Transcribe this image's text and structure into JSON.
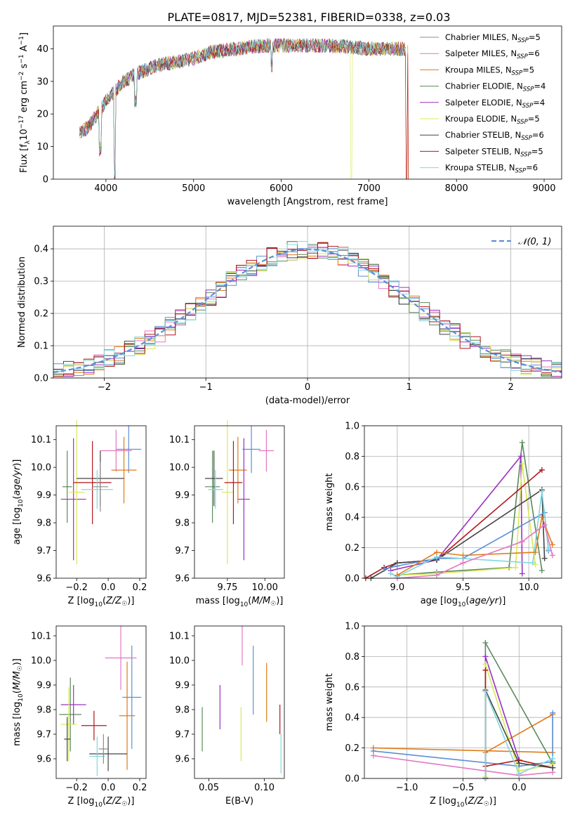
{
  "figure_title": "PLATE=0817, MJD=52381, FIBERID=0338, z=0.03",
  "colors": {
    "chabrier_miles": "#8c8c8c",
    "salpeter_miles": "#e377c2",
    "kroupa_miles": "#e07b1a",
    "chabrier_elodie": "#5a8a5a",
    "salpeter_elodie": "#9b30c0",
    "kroupa_elodie": "#d9e85a",
    "chabrier_stelib": "#444444",
    "salpeter_stelib": "#b0161a",
    "kroupa_stelib": "#7fd8e0",
    "normal_curve": "#5b8fd9",
    "miles_extra": "#5b8fd9"
  },
  "chart_data": [
    {
      "id": "spectrum",
      "type": "line",
      "title": "PLATE=0817, MJD=52381, FIBERID=0338, z=0.03",
      "xlabel": "wavelength [Angstrom, rest frame]",
      "ylabel": "Flux [f_λ10^-17 erg cm^-2 s^-1 A^-1]",
      "xlim": [
        3400,
        9200
      ],
      "ylim": [
        0,
        47
      ],
      "xticks": [
        4000,
        5000,
        6000,
        7000,
        8000,
        9000
      ],
      "yticks": [
        0,
        10,
        20,
        30,
        40
      ],
      "legend_position": "right",
      "series": [
        {
          "name": "Chabrier MILES, N_SSP=5",
          "color_key": "chabrier_miles"
        },
        {
          "name": "Salpeter MILES, N_SSP=6",
          "color_key": "salpeter_miles"
        },
        {
          "name": "Kroupa MILES, N_SSP=5",
          "color_key": "kroupa_miles"
        },
        {
          "name": "Chabrier ELODIE, N_SSP=4",
          "color_key": "chabrier_elodie"
        },
        {
          "name": "Salpeter ELODIE, N_SSP=4",
          "color_key": "salpeter_elodie"
        },
        {
          "name": "Kroupa ELODIE, N_SSP=5",
          "color_key": "kroupa_elodie"
        },
        {
          "name": "Chabrier STELIB, N_SSP=6",
          "color_key": "chabrier_stelib"
        },
        {
          "name": "Salpeter STELIB, N_SSP=5",
          "color_key": "salpeter_stelib"
        },
        {
          "name": "Kroupa STELIB, N_SSP=6",
          "color_key": "kroupa_stelib"
        }
      ],
      "continuum": {
        "x": [
          3700,
          3800,
          3900,
          4000,
          4100,
          4200,
          4400,
          4600,
          4800,
          5000,
          5200,
          5500,
          5800,
          6000,
          6300,
          6600,
          7000,
          7300,
          7600,
          8000,
          8400,
          8800,
          9000
        ],
        "y": [
          14,
          16,
          20,
          24,
          27,
          30,
          33,
          35,
          36,
          37,
          39,
          40,
          41,
          41,
          41,
          41,
          40,
          40,
          40,
          40,
          40,
          40,
          40
        ]
      },
      "absorption_dips": [
        {
          "x": 3933,
          "depth": 12
        },
        {
          "x": 4101,
          "depth": 25
        },
        {
          "x": 4340,
          "depth": 8
        },
        {
          "x": 5890,
          "depth": 6
        },
        {
          "x": 6800,
          "to": 0
        },
        {
          "x": 7430,
          "to": 0
        }
      ]
    },
    {
      "id": "residuals",
      "type": "line",
      "xlabel": "(data-model)/error",
      "ylabel": "Normed distribution",
      "xlim": [
        -2.5,
        2.5
      ],
      "ylim": [
        0,
        0.47
      ],
      "xticks": [
        -2,
        -1,
        0,
        1,
        2
      ],
      "yticks": [
        0.0,
        0.1,
        0.2,
        0.3,
        0.4
      ],
      "grid": true,
      "legend_position": "top-right",
      "normal_label": "𝒩(0, 1)",
      "bin_width": 0.1
    },
    {
      "id": "age_vs_Z",
      "type": "scatter",
      "xlabel": "Z [log10(Z/Z☉)]",
      "ylabel": "age  [log10(age/yr)]",
      "xlim": [
        -0.33,
        0.24
      ],
      "ylim": [
        9.6,
        10.15
      ],
      "xticks": [
        -0.2,
        0.0,
        0.2
      ],
      "yticks": [
        9.6,
        9.7,
        9.8,
        9.9,
        10.0,
        10.1
      ],
      "points": [
        {
          "color_key": "miles_extra",
          "x": 0.13,
          "xerr": 0.08,
          "y": 10.065,
          "yerr": 0.085
        },
        {
          "color_key": "salpeter_miles",
          "x": 0.05,
          "xerr": 0.1,
          "y": 10.06,
          "yerr": 0.075
        },
        {
          "color_key": "kroupa_miles",
          "x": 0.1,
          "xerr": 0.08,
          "y": 9.99,
          "yerr": 0.12
        },
        {
          "color_key": "chabrier_elodie",
          "x": -0.26,
          "xerr": 0.03,
          "y": 9.93,
          "yerr": 0.13
        },
        {
          "color_key": "salpeter_elodie",
          "x": -0.22,
          "xerr": 0.08,
          "y": 9.885,
          "yerr": 0.22
        },
        {
          "color_key": "kroupa_elodie",
          "x": -0.2,
          "xerr": 0.05,
          "y": 9.91,
          "yerr": 0.26
        },
        {
          "color_key": "chabrier_stelib",
          "x": -0.05,
          "xerr": 0.15,
          "y": 9.96,
          "yerr": 0.1
        },
        {
          "color_key": "salpeter_stelib",
          "x": -0.1,
          "xerr": 0.12,
          "y": 9.945,
          "yerr": 0.15
        },
        {
          "color_key": "kroupa_stelib",
          "x": -0.07,
          "xerr": 0.1,
          "y": 9.92,
          "yerr": 0.07
        },
        {
          "color_key": "chabrier_miles",
          "x": -0.05,
          "xerr": 0.05,
          "y": 9.93,
          "yerr": 0.09
        }
      ]
    },
    {
      "id": "age_vs_mass",
      "type": "scatter",
      "xlabel": "mass [log10(M/M☉)]",
      "xlim": [
        9.53,
        10.13
      ],
      "ylim": [
        9.6,
        10.15
      ],
      "xticks": [
        9.75,
        10.0
      ],
      "yticks": [
        9.6,
        9.7,
        9.8,
        9.9,
        10.0,
        10.1
      ],
      "points": [
        {
          "color_key": "miles_extra",
          "x": 9.91,
          "xerr": 0.06,
          "y": 10.065,
          "yerr": 0.085
        },
        {
          "color_key": "salpeter_miles",
          "x": 10.01,
          "xerr": 0.05,
          "y": 10.06,
          "yerr": 0.075
        },
        {
          "color_key": "kroupa_miles",
          "x": 9.82,
          "xerr": 0.06,
          "y": 9.99,
          "yerr": 0.12
        },
        {
          "color_key": "chabrier_elodie",
          "x": 9.65,
          "xerr": 0.05,
          "y": 9.93,
          "yerr": 0.13
        },
        {
          "color_key": "salpeter_elodie",
          "x": 9.86,
          "xerr": 0.04,
          "y": 9.885,
          "yerr": 0.22
        },
        {
          "color_key": "kroupa_elodie",
          "x": 9.75,
          "xerr": 0.04,
          "y": 9.91,
          "yerr": 0.26
        },
        {
          "color_key": "chabrier_stelib",
          "x": 9.66,
          "xerr": 0.06,
          "y": 9.96,
          "yerr": 0.1
        },
        {
          "color_key": "salpeter_stelib",
          "x": 9.79,
          "xerr": 0.06,
          "y": 9.945,
          "yerr": 0.15
        },
        {
          "color_key": "kroupa_stelib",
          "x": 9.67,
          "xerr": 0.05,
          "y": 9.92,
          "yerr": 0.07
        }
      ]
    },
    {
      "id": "weight_vs_age",
      "type": "line",
      "xlabel": "age  [log10(age/yr)]",
      "ylabel": "mass weight",
      "xlim": [
        8.75,
        10.25
      ],
      "ylim": [
        0,
        1
      ],
      "xticks": [
        9.0,
        9.5,
        10.0
      ],
      "yticks": [
        0.0,
        0.2,
        0.4,
        0.6,
        0.8,
        1.0
      ],
      "grid": true,
      "series": [
        {
          "color_key": "chabrier_elodie",
          "x": [
            9.0,
            9.3,
            9.85,
            9.95,
            10.1
          ],
          "y": [
            0.02,
            0.04,
            0.07,
            0.89,
            0.05
          ]
        },
        {
          "color_key": "salpeter_elodie",
          "x": [
            8.95,
            9.3,
            9.94,
            9.95
          ],
          "y": [
            0.05,
            0.12,
            0.8,
            0.03
          ]
        },
        {
          "color_key": "kroupa_elodie",
          "x": [
            9.0,
            9.3,
            9.9,
            9.95,
            10.05
          ],
          "y": [
            0.02,
            0.03,
            0.07,
            0.75,
            0.09
          ]
        },
        {
          "color_key": "salpeter_stelib",
          "x": [
            8.76,
            8.9,
            9.0,
            9.3,
            10.1
          ],
          "y": [
            0.0,
            0.07,
            0.1,
            0.12,
            0.71
          ]
        },
        {
          "color_key": "chabrier_stelib",
          "x": [
            8.8,
            9.0,
            9.3,
            10.1,
            10.12
          ],
          "y": [
            0.0,
            0.1,
            0.12,
            0.58,
            0.13
          ]
        },
        {
          "color_key": "miles_extra",
          "x": [
            8.9,
            9.0,
            9.3,
            9.5,
            10.12,
            10.15
          ],
          "y": [
            0.06,
            0.08,
            0.13,
            0.13,
            0.43,
            0.18
          ]
        },
        {
          "color_key": "kroupa_stelib",
          "x": [
            8.95,
            9.0,
            9.3,
            10.03,
            10.1,
            10.15
          ],
          "y": [
            0.03,
            0.01,
            0.14,
            0.1,
            0.57,
            0.19
          ]
        },
        {
          "color_key": "kroupa_miles",
          "x": [
            9.0,
            9.3,
            9.5,
            10.05,
            10.1,
            10.18
          ],
          "y": [
            0.02,
            0.17,
            0.15,
            0.17,
            0.4,
            0.22
          ]
        },
        {
          "color_key": "salpeter_miles",
          "x": [
            9.0,
            9.3,
            9.5,
            9.95,
            10.12,
            10.18
          ],
          "y": [
            0.0,
            0.02,
            0.1,
            0.24,
            0.35,
            0.15
          ]
        }
      ]
    },
    {
      "id": "mass_vs_Z",
      "type": "scatter",
      "xlabel": "Z [log10(Z/Z☉)]",
      "ylabel": "mass [log10(M/M☉)]",
      "xlim": [
        -0.33,
        0.24
      ],
      "ylim": [
        9.52,
        10.14
      ],
      "xticks": [
        -0.2,
        0.0,
        0.2
      ],
      "yticks": [
        9.6,
        9.7,
        9.8,
        9.9,
        10.0,
        10.1
      ],
      "points": [
        {
          "color_key": "miles_extra",
          "x": 0.15,
          "xerr": 0.06,
          "y": 9.85,
          "yerr": 0.21
        },
        {
          "color_key": "salpeter_miles",
          "x": 0.08,
          "xerr": 0.1,
          "y": 10.01,
          "yerr": 0.13
        },
        {
          "color_key": "kroupa_miles",
          "x": 0.12,
          "xerr": 0.05,
          "y": 9.775,
          "yerr": 0.22
        },
        {
          "color_key": "chabrier_elodie",
          "x": -0.24,
          "xerr": 0.07,
          "y": 9.78,
          "yerr": 0.15
        },
        {
          "color_key": "salpeter_elodie",
          "x": -0.22,
          "xerr": 0.08,
          "y": 9.82,
          "yerr": 0.08
        },
        {
          "color_key": "kroupa_elodie",
          "x": -0.25,
          "xerr": 0.05,
          "y": 9.74,
          "yerr": 0.15
        },
        {
          "color_key": "chabrier_stelib",
          "x": 0.0,
          "xerr": 0.12,
          "y": 9.62,
          "yerr": 0.07
        },
        {
          "color_key": "salpeter_stelib",
          "x": -0.09,
          "xerr": 0.08,
          "y": 9.735,
          "yerr": 0.06
        },
        {
          "color_key": "kroupa_stelib",
          "x": -0.07,
          "xerr": 0.05,
          "y": 9.61,
          "yerr": 0.08
        },
        {
          "color_key": "chabrier_miles",
          "x": -0.03,
          "xerr": 0.03,
          "y": 9.64,
          "yerr": 0.06
        },
        {
          "color_key": "chabrier_stelib",
          "x": -0.26,
          "xerr": 0.02,
          "y": 9.68,
          "yerr": 0.09
        }
      ]
    },
    {
      "id": "mass_vs_ebv",
      "type": "scatter",
      "xlabel": "E(B-V)",
      "xlim": [
        0.037,
        0.118
      ],
      "ylim": [
        9.52,
        10.14
      ],
      "xticks": [
        0.05,
        0.1
      ],
      "yticks": [
        9.6,
        9.7,
        9.8,
        9.9,
        10.0,
        10.1
      ],
      "points": [
        {
          "color_key": "chabrier_elodie",
          "x": 0.044,
          "y": 9.72,
          "yerr": 0.09
        },
        {
          "color_key": "salpeter_elodie",
          "x": 0.06,
          "y": 9.81,
          "yerr": 0.09
        },
        {
          "color_key": "kroupa_elodie",
          "x": 0.079,
          "y": 9.7,
          "yerr": 0.11
        },
        {
          "color_key": "salpeter_miles",
          "x": 0.08,
          "y": 10.06,
          "yerr": 0.08
        },
        {
          "color_key": "miles_extra",
          "x": 0.09,
          "y": 9.92,
          "yerr": 0.14
        },
        {
          "color_key": "kroupa_miles",
          "x": 0.102,
          "y": 9.87,
          "yerr": 0.12
        },
        {
          "color_key": "salpeter_stelib",
          "x": 0.114,
          "y": 9.76,
          "yerr": 0.06
        },
        {
          "color_key": "kroupa_stelib",
          "x": 0.115,
          "y": 9.62,
          "yerr": 0.08
        }
      ]
    },
    {
      "id": "weight_vs_Z",
      "type": "line",
      "xlabel": "Z [log10(Z/Z☉)]",
      "ylabel": "mass weight",
      "xlim": [
        -1.38,
        0.38
      ],
      "ylim": [
        0,
        1
      ],
      "xticks": [
        -1.0,
        -0.5,
        0.0
      ],
      "yticks": [
        0.0,
        0.2,
        0.4,
        0.6,
        0.8,
        1.0
      ],
      "grid": true,
      "series": [
        {
          "color_key": "kroupa_miles",
          "x": [
            -1.3,
            0.3,
            0.3,
            -0.3
          ],
          "y": [
            0.2,
            0.17,
            0.42,
            0.17
          ]
        },
        {
          "color_key": "miles_extra",
          "x": [
            -1.3,
            0.0,
            0.3,
            0.3
          ],
          "y": [
            0.18,
            0.08,
            0.11,
            0.43
          ]
        },
        {
          "color_key": "salpeter_miles",
          "x": [
            -1.3,
            0.0,
            0.3
          ],
          "y": [
            0.15,
            0.02,
            0.04
          ]
        },
        {
          "color_key": "chabrier_elodie",
          "x": [
            -0.3,
            -0.3,
            0.3
          ],
          "y": [
            0.0,
            0.89,
            0.1
          ]
        },
        {
          "color_key": "salpeter_elodie",
          "x": [
            -0.3,
            -0.3,
            0.0
          ],
          "y": [
            0.0,
            0.8,
            0.12
          ]
        },
        {
          "color_key": "kroupa_elodie",
          "x": [
            -0.3,
            -0.3,
            0.0,
            0.3
          ],
          "y": [
            0.01,
            0.75,
            0.05,
            0.09
          ]
        },
        {
          "color_key": "salpeter_stelib",
          "x": [
            -0.3,
            -0.3,
            -0.3,
            0.0,
            0.3
          ],
          "y": [
            0.0,
            0.71,
            0.08,
            0.12,
            0.07
          ]
        },
        {
          "color_key": "chabrier_stelib",
          "x": [
            -0.3,
            -0.3,
            0.0,
            0.3
          ],
          "y": [
            0.0,
            0.58,
            0.1,
            0.07
          ]
        },
        {
          "color_key": "kroupa_stelib",
          "x": [
            -0.3,
            -0.3,
            0.0,
            0.3
          ],
          "y": [
            0.0,
            0.57,
            0.03,
            0.13
          ]
        }
      ]
    }
  ]
}
